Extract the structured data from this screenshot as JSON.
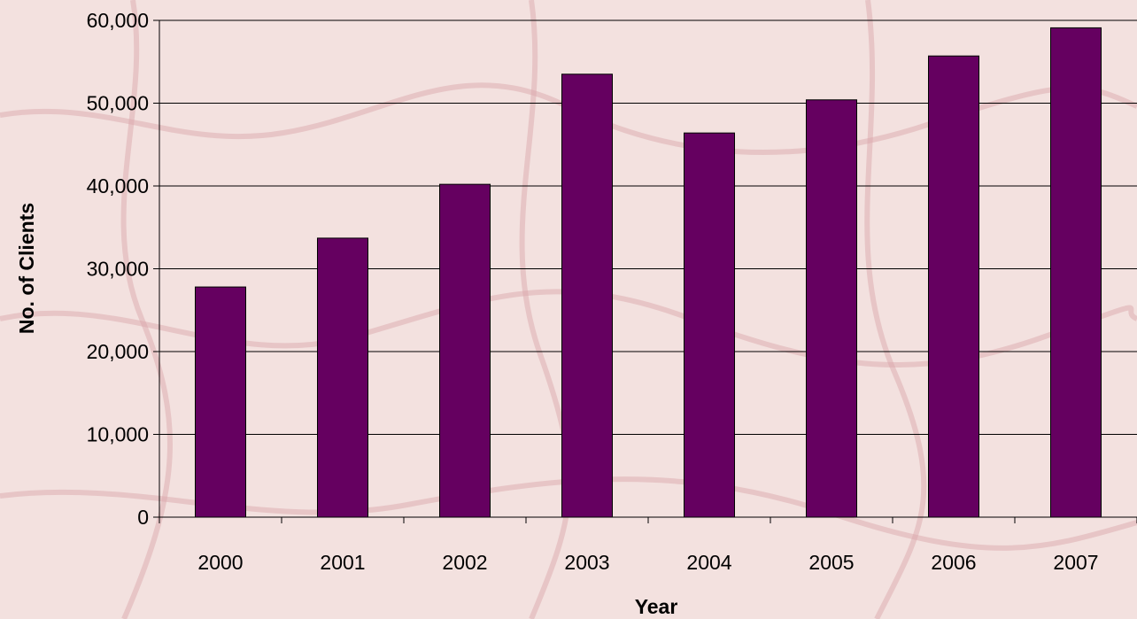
{
  "colors": {
    "bar": "#650060",
    "bar_stroke": "#000000",
    "grid": "#000000",
    "background": "#f3e1df",
    "map_lines": "#d9a3a8"
  },
  "chart_data": {
    "type": "bar",
    "title": "",
    "xlabel": "Year",
    "ylabel": "No. of Clients",
    "categories": [
      "2000",
      "2001",
      "2002",
      "2003",
      "2004",
      "2005",
      "2006",
      "2007"
    ],
    "values": [
      27800,
      33700,
      40200,
      53500,
      46400,
      50400,
      55700,
      59100
    ],
    "ylim": [
      0,
      60000
    ],
    "yticks": [
      0,
      10000,
      20000,
      30000,
      40000,
      50000,
      60000
    ],
    "ytick_labels": [
      "0",
      "10,000",
      "20,000",
      "30,000",
      "40,000",
      "50,000",
      "60,000"
    ],
    "grid": true,
    "legend": "none"
  }
}
